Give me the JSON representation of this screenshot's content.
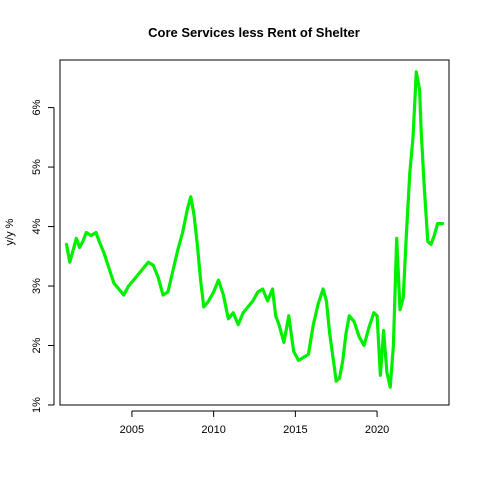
{
  "chart_data": {
    "type": "line",
    "title": "Core Services less Rent of Shelter",
    "xlabel": "",
    "ylabel": "y/y %",
    "xlim": [
      2000.6,
      2024.4
    ],
    "ylim": [
      1.0,
      6.8
    ],
    "x_ticks": [
      2005,
      2010,
      2015,
      2020
    ],
    "x_tick_labels": [
      "2005",
      "2010",
      "2015",
      "2020"
    ],
    "y_ticks": [
      1,
      2,
      3,
      4,
      5,
      6
    ],
    "y_tick_labels": [
      "1%",
      "2%",
      "3%",
      "4%",
      "5%",
      "6%"
    ],
    "grid": false,
    "legend": "none",
    "line_color": "#00ee00",
    "series": [
      {
        "x": [
          2001.0,
          2001.2,
          2001.4,
          2001.6,
          2001.8,
          2002.0,
          2002.2,
          2002.5,
          2002.8,
          2003.0,
          2003.3,
          2003.6,
          2003.9,
          2004.2,
          2004.5,
          2004.8,
          2005.1,
          2005.4,
          2005.7,
          2006.0,
          2006.3,
          2006.6,
          2006.9,
          2007.2,
          2007.5,
          2007.8,
          2008.1,
          2008.4,
          2008.6,
          2008.8,
          2009.0,
          2009.2,
          2009.4,
          2009.7,
          2010.0,
          2010.3,
          2010.6,
          2010.9,
          2011.2,
          2011.5,
          2011.8,
          2012.1,
          2012.4,
          2012.7,
          2013.0,
          2013.3,
          2013.6,
          2013.8,
          2014.0,
          2014.3,
          2014.6,
          2014.9,
          2015.2,
          2015.5,
          2015.8,
          2016.1,
          2016.4,
          2016.7,
          2016.9,
          2017.1,
          2017.3,
          2017.5,
          2017.7,
          2017.9,
          2018.1,
          2018.3,
          2018.6,
          2018.9,
          2019.2,
          2019.5,
          2019.8,
          2020.0,
          2020.2,
          2020.4,
          2020.6,
          2020.8,
          2021.0,
          2021.2,
          2021.4,
          2021.6,
          2021.8,
          2022.0,
          2022.2,
          2022.4,
          2022.6,
          2022.7,
          2022.9,
          2023.1,
          2023.3,
          2023.5,
          2023.7,
          2023.9,
          2024.0
        ],
        "y": [
          3.7,
          3.4,
          3.6,
          3.8,
          3.65,
          3.75,
          3.9,
          3.85,
          3.9,
          3.75,
          3.55,
          3.3,
          3.05,
          2.95,
          2.85,
          3.0,
          3.1,
          3.2,
          3.3,
          3.4,
          3.35,
          3.15,
          2.85,
          2.9,
          3.25,
          3.6,
          3.9,
          4.3,
          4.5,
          4.2,
          3.7,
          3.1,
          2.65,
          2.75,
          2.9,
          3.1,
          2.85,
          2.45,
          2.55,
          2.35,
          2.55,
          2.65,
          2.75,
          2.9,
          2.95,
          2.75,
          2.95,
          2.5,
          2.35,
          2.05,
          2.5,
          1.9,
          1.75,
          1.8,
          1.85,
          2.35,
          2.7,
          2.95,
          2.75,
          2.2,
          1.8,
          1.4,
          1.45,
          1.75,
          2.2,
          2.5,
          2.4,
          2.15,
          2.0,
          2.3,
          2.55,
          2.5,
          1.5,
          2.25,
          1.55,
          1.3,
          2.0,
          3.8,
          2.6,
          2.8,
          3.9,
          4.9,
          5.5,
          6.6,
          6.3,
          5.6,
          4.6,
          3.75,
          3.7,
          3.85,
          4.05,
          4.05,
          4.05
        ]
      }
    ]
  }
}
